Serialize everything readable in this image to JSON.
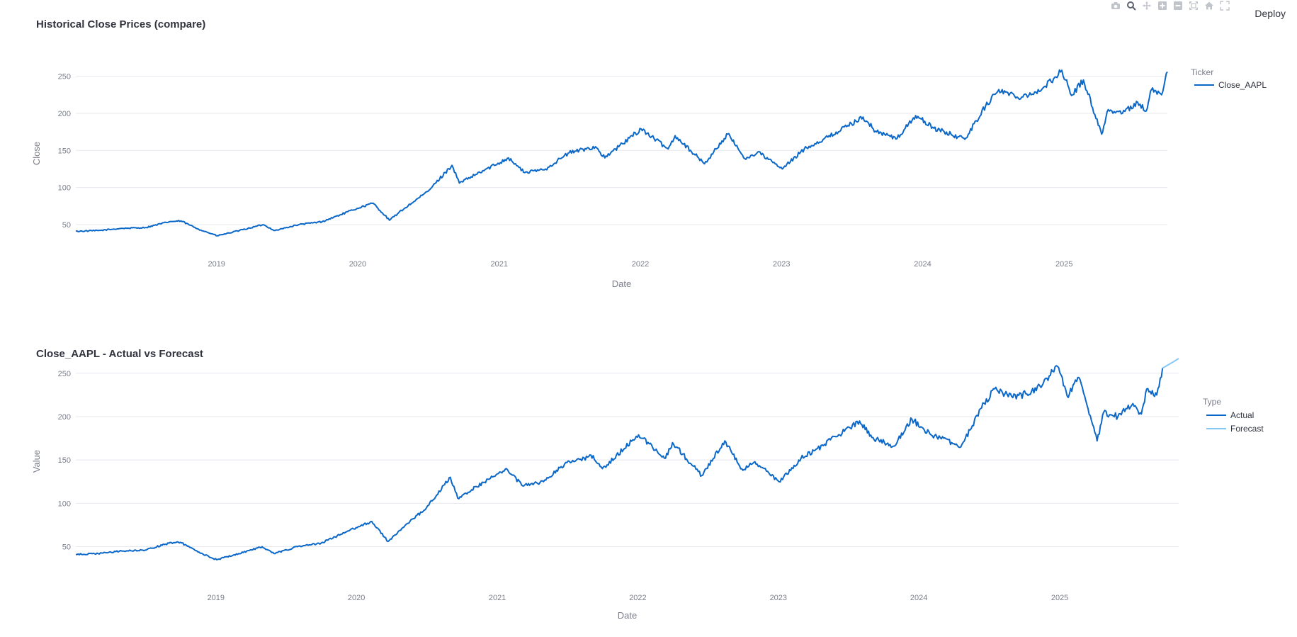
{
  "header": {
    "deploy_label": "Deploy"
  },
  "modebar": {
    "buttons": [
      "camera-icon",
      "zoom-icon",
      "pan-icon",
      "zoom-in-icon",
      "zoom-out-icon",
      "autoscale-icon",
      "reset-axes-icon",
      "fullscreen-icon"
    ]
  },
  "colors": {
    "actual": "#0b68c9",
    "forecast": "#86c8f5",
    "text": "#31333f",
    "muted": "#7a7d8a",
    "grid": "#e6e8ee"
  },
  "chart_data": [
    {
      "type": "line",
      "title": "Historical Close Prices (compare)",
      "xlabel": "Date",
      "ylabel": "Close",
      "x_ticks": [
        "2019",
        "2020",
        "2021",
        "2022",
        "2023",
        "2024",
        "2025"
      ],
      "y_ticks": [
        50,
        100,
        150,
        200,
        250
      ],
      "xlim": [
        "2018-01-02",
        "2025-09-25"
      ],
      "ylim": [
        30,
        262
      ],
      "legend": {
        "title": "Ticker",
        "position": "right"
      },
      "grid": true,
      "series": [
        {
          "name": "Close_AAPL",
          "color": "#0b68c9",
          "x": [
            "2018-01-02",
            "2018-03-01",
            "2018-05-01",
            "2018-07-01",
            "2018-09-01",
            "2018-10-01",
            "2018-11-15",
            "2019-01-03",
            "2019-03-01",
            "2019-05-01",
            "2019-06-01",
            "2019-08-01",
            "2019-10-01",
            "2019-12-31",
            "2020-02-10",
            "2020-03-23",
            "2020-05-01",
            "2020-07-01",
            "2020-09-01",
            "2020-09-20",
            "2021-01-25",
            "2021-03-08",
            "2021-05-01",
            "2021-07-01",
            "2021-09-07",
            "2021-10-01",
            "2022-01-03",
            "2022-03-14",
            "2022-04-01",
            "2022-06-16",
            "2022-08-15",
            "2022-10-01",
            "2022-11-01",
            "2023-01-03",
            "2023-03-01",
            "2023-05-01",
            "2023-07-31",
            "2023-09-01",
            "2023-10-27",
            "2023-12-14",
            "2024-01-30",
            "2024-04-19",
            "2024-06-12",
            "2024-07-16",
            "2024-09-01",
            "2024-11-01",
            "2024-12-26",
            "2025-01-20",
            "2025-02-20",
            "2025-04-08",
            "2025-04-25",
            "2025-06-01",
            "2025-07-10",
            "2025-08-01",
            "2025-08-15",
            "2025-09-10",
            "2025-09-25"
          ],
          "y": [
            41,
            42,
            45,
            46,
            54,
            55,
            44,
            35,
            42,
            50,
            42,
            50,
            54,
            72,
            79,
            56,
            72,
            95,
            130,
            106,
            140,
            120,
            125,
            147,
            155,
            140,
            179,
            152,
            170,
            132,
            172,
            138,
            148,
            125,
            152,
            168,
            195,
            176,
            166,
            197,
            180,
            165,
            210,
            232,
            222,
            230,
            258,
            224,
            245,
            172,
            205,
            200,
            215,
            203,
            232,
            225,
            256
          ]
        }
      ]
    },
    {
      "type": "line",
      "title": "Close_AAPL - Actual vs Forecast",
      "xlabel": "Date",
      "ylabel": "Value",
      "x_ticks": [
        "2019",
        "2020",
        "2021",
        "2022",
        "2023",
        "2024",
        "2025"
      ],
      "y_ticks": [
        50,
        100,
        150,
        200,
        250
      ],
      "xlim": [
        "2018-01-02",
        "2025-11-06"
      ],
      "ylim": [
        30,
        267
      ],
      "legend": {
        "title": "Type",
        "position": "right"
      },
      "grid": true,
      "series": [
        {
          "name": "Actual",
          "color": "#0b68c9",
          "x": [
            "2018-01-02",
            "2018-03-01",
            "2018-05-01",
            "2018-07-01",
            "2018-09-01",
            "2018-10-01",
            "2018-11-15",
            "2019-01-03",
            "2019-03-01",
            "2019-05-01",
            "2019-06-01",
            "2019-08-01",
            "2019-10-01",
            "2019-12-31",
            "2020-02-10",
            "2020-03-23",
            "2020-05-01",
            "2020-07-01",
            "2020-09-01",
            "2020-09-20",
            "2021-01-25",
            "2021-03-08",
            "2021-05-01",
            "2021-07-01",
            "2021-09-07",
            "2021-10-01",
            "2022-01-03",
            "2022-03-14",
            "2022-04-01",
            "2022-06-16",
            "2022-08-15",
            "2022-10-01",
            "2022-11-01",
            "2023-01-03",
            "2023-03-01",
            "2023-05-01",
            "2023-07-31",
            "2023-09-01",
            "2023-10-27",
            "2023-12-14",
            "2024-01-30",
            "2024-04-19",
            "2024-06-12",
            "2024-07-16",
            "2024-09-01",
            "2024-11-01",
            "2024-12-26",
            "2025-01-20",
            "2025-02-20",
            "2025-04-08",
            "2025-04-25",
            "2025-06-01",
            "2025-07-10",
            "2025-08-01",
            "2025-08-15",
            "2025-09-10",
            "2025-09-25"
          ],
          "y": [
            41,
            42,
            45,
            46,
            54,
            55,
            44,
            35,
            42,
            50,
            42,
            50,
            54,
            72,
            79,
            56,
            72,
            95,
            130,
            106,
            140,
            120,
            125,
            147,
            155,
            140,
            179,
            152,
            170,
            132,
            172,
            138,
            148,
            125,
            152,
            168,
            195,
            176,
            166,
            197,
            180,
            165,
            210,
            232,
            222,
            230,
            258,
            224,
            245,
            172,
            205,
            200,
            215,
            203,
            232,
            225,
            256
          ]
        },
        {
          "name": "Forecast",
          "color": "#86c8f5",
          "x": [
            "2025-09-25",
            "2025-10-15",
            "2025-11-06"
          ],
          "y": [
            256,
            261,
            267
          ]
        }
      ]
    }
  ]
}
